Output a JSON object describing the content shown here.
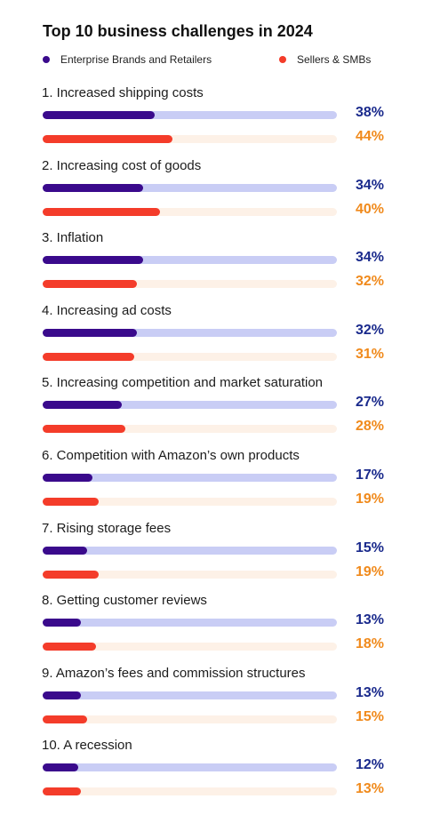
{
  "chart_data": {
    "type": "bar",
    "title": "Top 10 business challenges in 2024",
    "categories": [
      "1. Increased shipping costs",
      "2. Increasing cost of goods",
      "3. Inflation",
      "4. Increasing ad costs",
      "5. Increasing competition and market saturation",
      "6. Competition with Amazon’s own products",
      "7. Rising storage fees",
      "8. Getting customer reviews",
      "9. Amazon’s fees and commission structures",
      "10. A recession"
    ],
    "series": [
      {
        "name": "Enterprise Brands and Retailers",
        "values": [
          38,
          34,
          34,
          32,
          27,
          17,
          15,
          13,
          13,
          12
        ],
        "labels": [
          "38%",
          "34%",
          "34%",
          "32%",
          "27%",
          "17%",
          "15%",
          "13%",
          "13%",
          "12%"
        ],
        "color": "#3a0a8c",
        "track_color": "#c9cdf5",
        "label_color": "#1a2a8c"
      },
      {
        "name": "Sellers & SMBs",
        "values": [
          44,
          40,
          32,
          31,
          28,
          19,
          19,
          18,
          15,
          13
        ],
        "labels": [
          "44%",
          "40%",
          "32%",
          "31%",
          "28%",
          "19%",
          "19%",
          "18%",
          "15%",
          "13%"
        ],
        "color": "#f43c2a",
        "track_color": "#fdf1e7",
        "label_color": "#f08a1c"
      }
    ],
    "ylim": [
      0,
      100
    ],
    "legend": "top"
  }
}
